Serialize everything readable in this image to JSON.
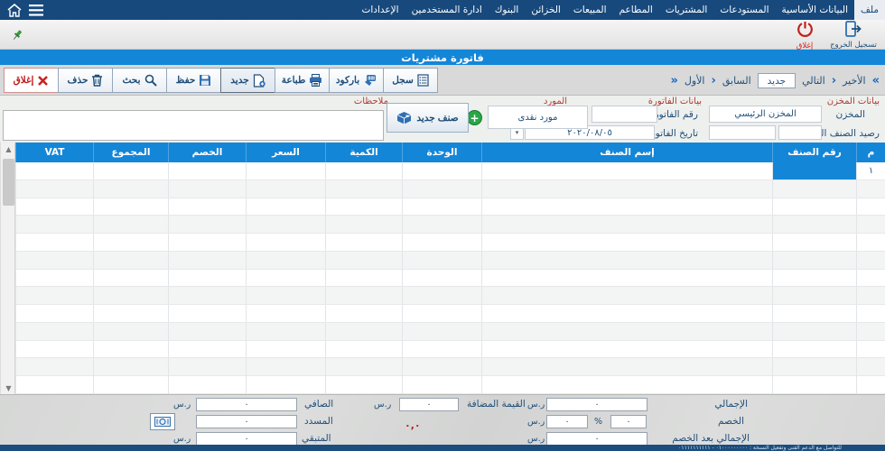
{
  "window": {
    "title": "فاتورة مشتريات"
  },
  "menu": {
    "items": [
      "ملف",
      "البيانات الأساسية",
      "المستودعات",
      "المشتريات",
      "المطاعم",
      "المبيعات",
      "الخزائن",
      "البنوك",
      "ادارة المستخدمين",
      "الإعدادات"
    ],
    "selected": "ملف"
  },
  "topbar": {
    "logout_label": "تسجيل الخروج",
    "close_label": "إغلاق"
  },
  "toolbar": {
    "buttons": [
      {
        "id": "close",
        "label": "إغلاق"
      },
      {
        "id": "delete",
        "label": "حذف"
      },
      {
        "id": "search",
        "label": "بحث"
      },
      {
        "id": "save",
        "label": "حفظ"
      },
      {
        "id": "new",
        "label": "جديد"
      },
      {
        "id": "print",
        "label": "طباعة"
      },
      {
        "id": "barcode",
        "label": "باركود"
      },
      {
        "id": "register",
        "label": "سجل"
      }
    ]
  },
  "nav": {
    "first": "الأول",
    "prev": "السابق",
    "current": "جديد",
    "next": "التالي",
    "last": "الأخير",
    "chev_left": "»",
    "chev_mid1": "›",
    "chev_mid2": "›",
    "chev_right": "«"
  },
  "form": {
    "warehouse_group": "بيانات المخزن",
    "warehouse_label": "المخزن",
    "warehouse_value": "المخزن الرئيسي",
    "balance_label": "رصيد الصنف الحالي",
    "invoice_group": "بيانات الفاتورة",
    "invoice_no_label": "رقم الفاتورة",
    "invoice_date_label": "تاريخ الفاتورة",
    "invoice_date_value": "٢٠٢٠/٠٨/٠٥",
    "supplier_group": "المورد",
    "supplier_value": "مورد نقدى",
    "new_item_label": "صنف جديد",
    "notes_label": "ملاحظات",
    "dropdown_glyph": "▾",
    "plus_glyph": "+"
  },
  "table": {
    "columns": [
      "م",
      "رقم الصنف",
      "إسم الصنف",
      "الوحدة",
      "الكمية",
      "السعر",
      "الخصم",
      "المجموع",
      "VAT"
    ],
    "first_row_index": "١",
    "row_count": 13
  },
  "totals": {
    "total_label": "الإجمالي",
    "total_value": "٠",
    "discount_label": "الخصم",
    "discount_percent_value": "٠",
    "discount_value": "٠",
    "after_discount_label": "الإجمالي بعد الخصم",
    "after_discount_value": "٠",
    "vat_label": "القيمة المضافة",
    "vat_value": "٠",
    "net_label": "الصافي",
    "net_value": "٠",
    "paid_label": "المسدد",
    "paid_value": "٠",
    "remaining_label": "المتبقي",
    "remaining_value": "٠",
    "currency": "ر.س",
    "percent_sign": "%",
    "red_total": "٠,٠"
  },
  "status_bar": {
    "text": "للتواصل مع الدعم الفنى وتفعيل النسخة : ٠١٠٠٠٠٠٠٠٠٠ - ٠١١١١١١١١١١"
  },
  "colors": {
    "accent_blue": "#1486d8",
    "menu_navy": "#17497d",
    "group_red": "#ae3a30",
    "success_green": "#27a844"
  }
}
